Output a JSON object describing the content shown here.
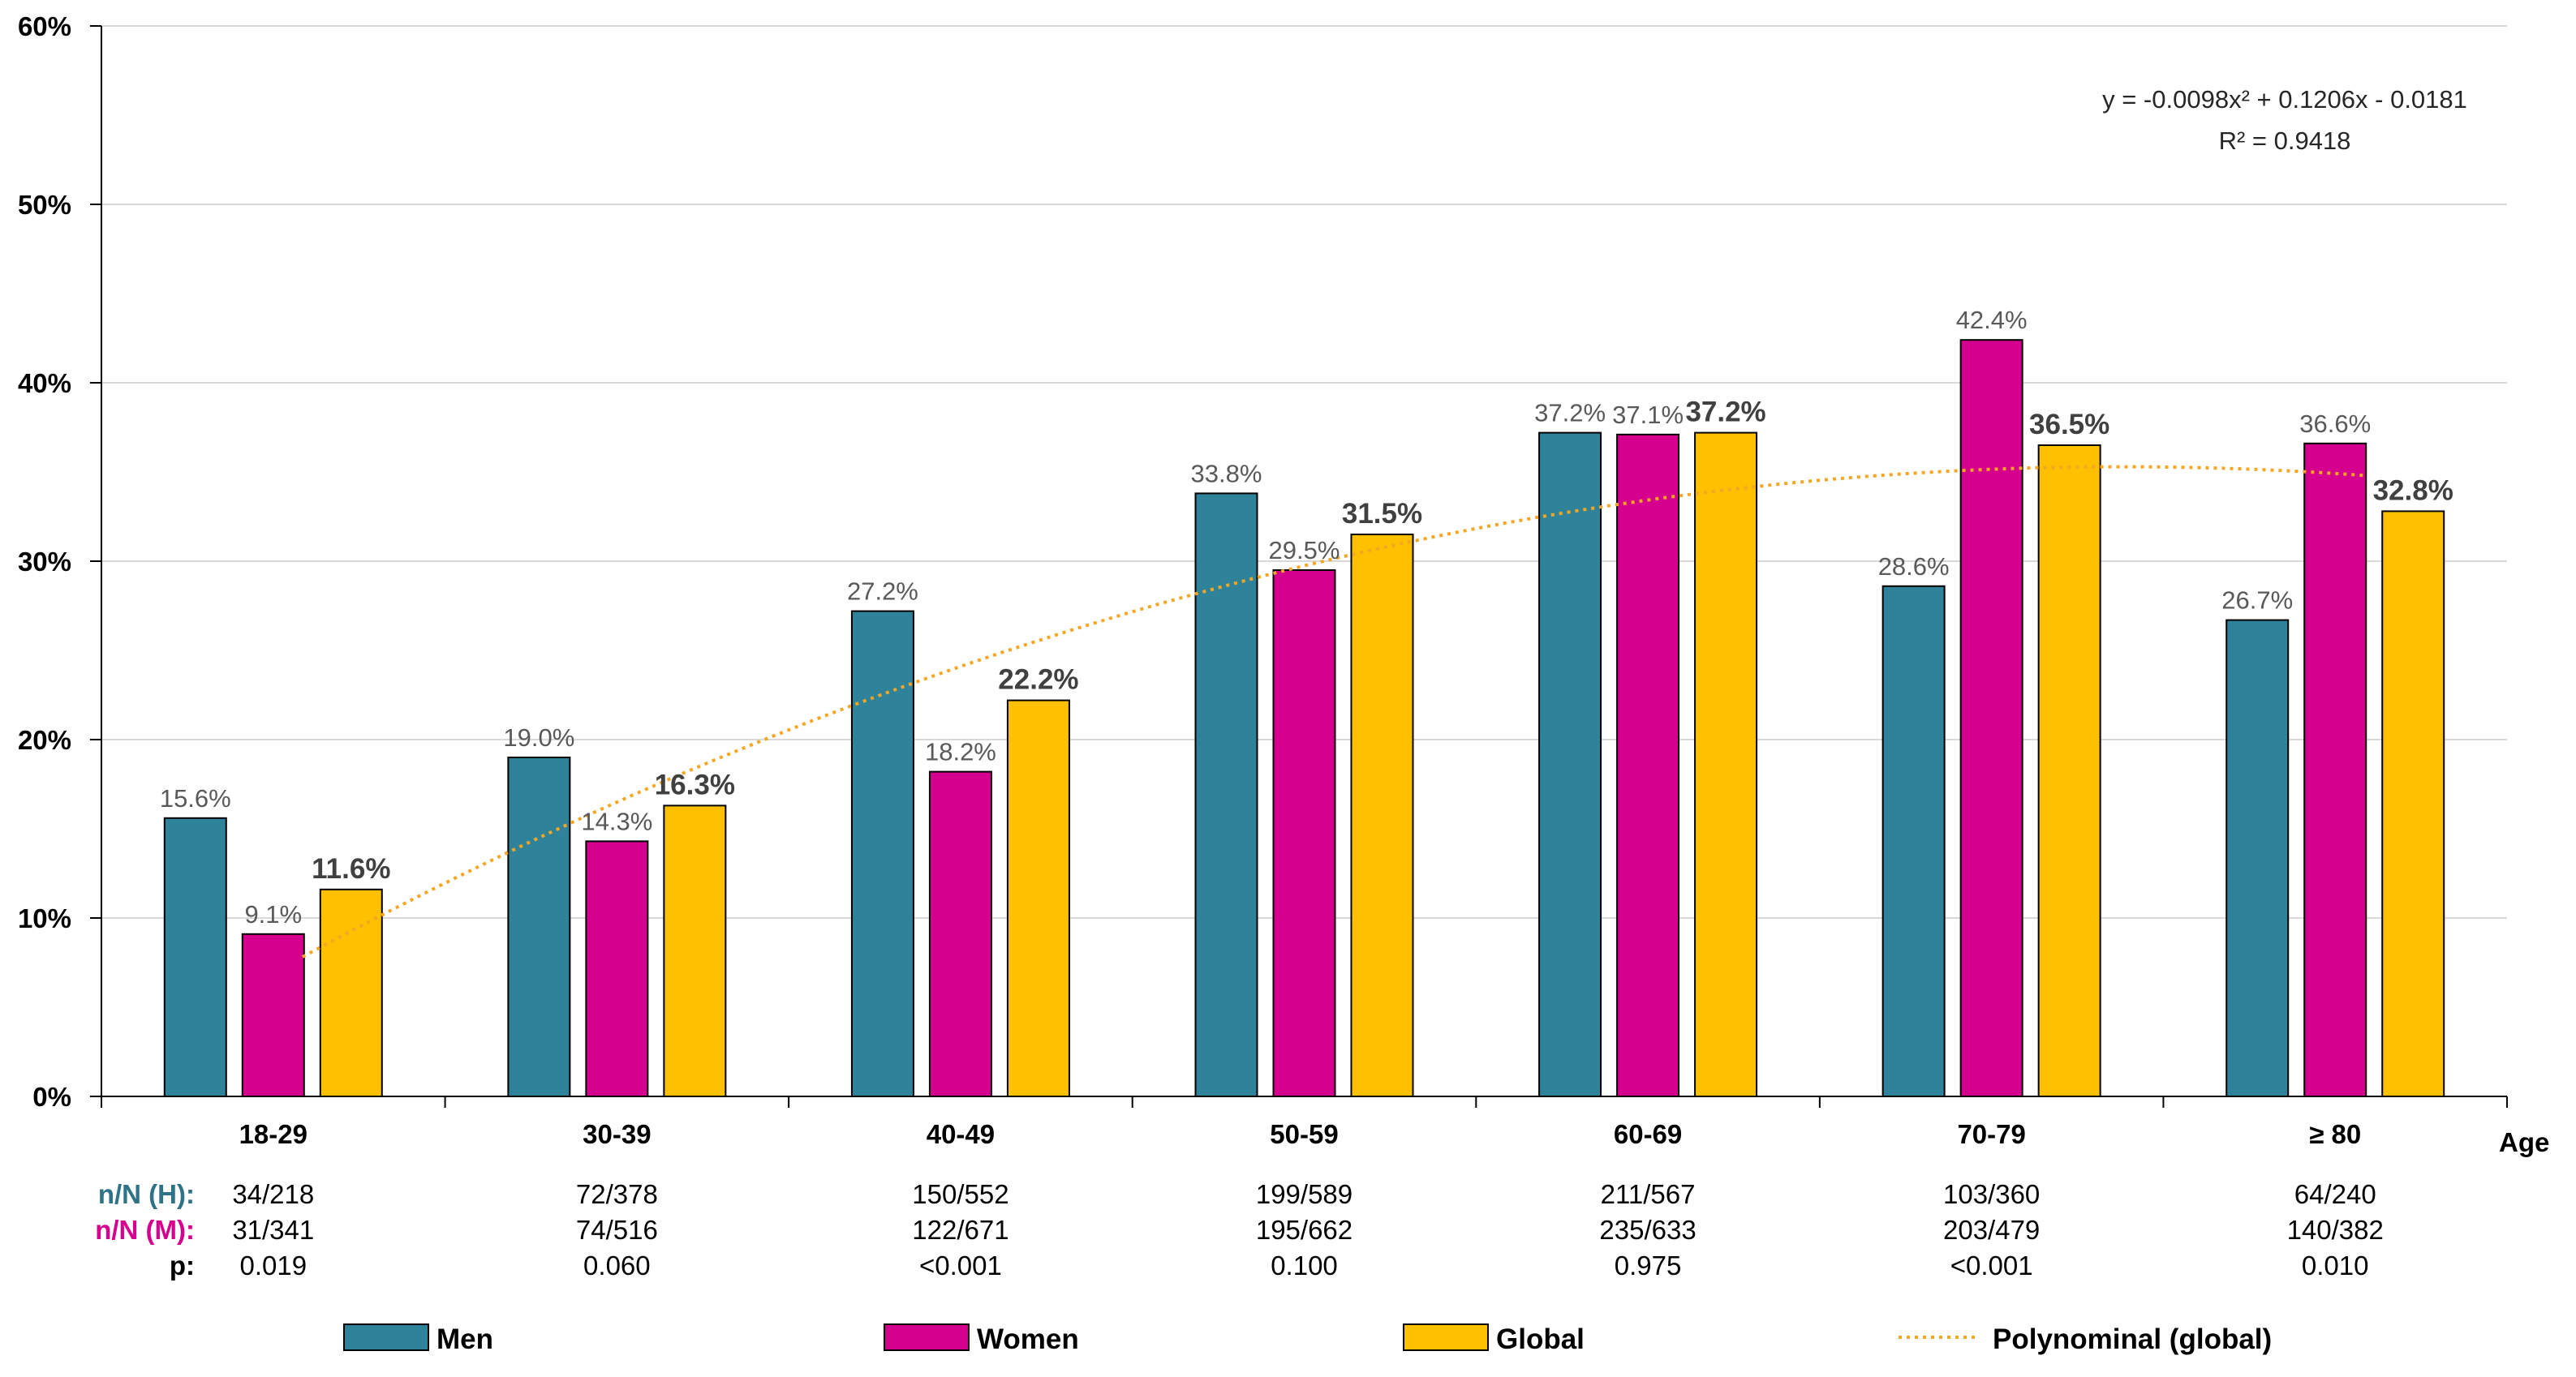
{
  "chart_data": {
    "type": "bar",
    "categories": [
      "18-29",
      "30-39",
      "40-49",
      "50-59",
      "60-69",
      "70-79",
      "≥ 80"
    ],
    "xlabel": "Age",
    "ylim": [
      0,
      60
    ],
    "yticks": [
      "0%",
      "10%",
      "20%",
      "30%",
      "40%",
      "50%",
      "60%"
    ],
    "grid": true,
    "series": [
      {
        "name": "Men",
        "color": "#2E8299",
        "values": [
          15.6,
          19.0,
          27.2,
          33.8,
          37.2,
          28.6,
          26.7
        ],
        "labels": [
          "15.6%",
          "19.0%",
          "27.2%",
          "33.8%",
          "37.2%",
          "28.6%",
          "26.7%"
        ]
      },
      {
        "name": "Women",
        "color": "#D6008F",
        "values": [
          9.1,
          14.3,
          18.2,
          29.5,
          37.1,
          42.4,
          36.6
        ],
        "labels": [
          "9.1%",
          "14.3%",
          "18.2%",
          "29.5%",
          "37.1%",
          "42.4%",
          "36.6%"
        ]
      },
      {
        "name": "Global",
        "color": "#FFC000",
        "values": [
          11.6,
          16.3,
          22.2,
          31.5,
          37.2,
          36.5,
          32.8
        ],
        "labels": [
          "11.6%",
          "16.3%",
          "22.2%",
          "31.5%",
          "37.2%",
          "36.5%",
          "32.8%"
        ]
      }
    ],
    "trendline": {
      "name": "Polynominal (global)",
      "color": "#F5A623",
      "coefficients": [
        -0.0098,
        0.1206,
        -0.0181
      ],
      "equation": "y = -0.0098x² + 0.1206x - 0.0181",
      "r2": "R² = 0.9418"
    },
    "table": {
      "rows": [
        {
          "label": "n/N (H):",
          "color": "#2E7386",
          "values": [
            "34/218",
            "72/378",
            "150/552",
            "199/589",
            "211/567",
            "103/360",
            "64/240"
          ]
        },
        {
          "label": "n/N (M):",
          "color": "#D6008F",
          "values": [
            "31/341",
            "74/516",
            "122/671",
            "195/662",
            "235/633",
            "203/479",
            "140/382"
          ]
        },
        {
          "label": "p:",
          "color": "#000000",
          "values": [
            "0.019",
            "0.060",
            "<0.001",
            "0.100",
            "0.975",
            "<0.001",
            "0.010"
          ]
        }
      ]
    },
    "legend_position": "bottom"
  }
}
